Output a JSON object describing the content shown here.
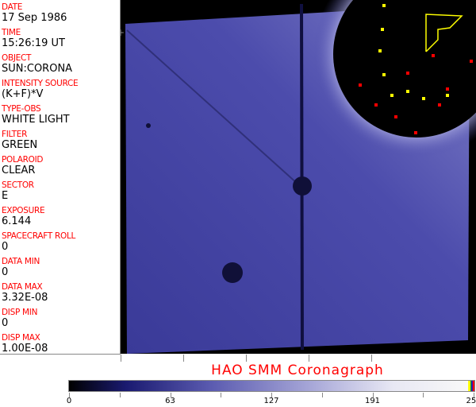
{
  "fields": [
    {
      "label": "DATE",
      "value": "17 Sep 1986"
    },
    {
      "label": "TIME",
      "value": "15:26:19 UT"
    },
    {
      "label": "OBJECT",
      "value": "SUN:CORONA"
    },
    {
      "label": "INTENSITY SOURCE",
      "value": "(K+F)*V"
    },
    {
      "label": "TYPE-OBS",
      "value": "WHITE LIGHT"
    },
    {
      "label": "FILTER",
      "value": "GREEN"
    },
    {
      "label": "POLAROID",
      "value": "CLEAR"
    },
    {
      "label": "SECTOR",
      "value": "E"
    },
    {
      "label": "EXPOSURE",
      "value": "6.144"
    },
    {
      "label": "SPACECRAFT ROLL",
      "value": "0"
    },
    {
      "label": "DATA MIN",
      "value": "0"
    },
    {
      "label": "DATA MAX",
      "value": "3.32E-08"
    },
    {
      "label": "DISP MIN",
      "value": "0"
    },
    {
      "label": "DISP MAX",
      "value": "1.00E-08"
    }
  ],
  "title": "HAO  SMM Coronagraph",
  "colorbar": {
    "ticks": [
      "0",
      "63",
      "127",
      "191",
      "255"
    ]
  },
  "colors": {
    "label": "#ff0000",
    "image": "#4a4aa8"
  }
}
